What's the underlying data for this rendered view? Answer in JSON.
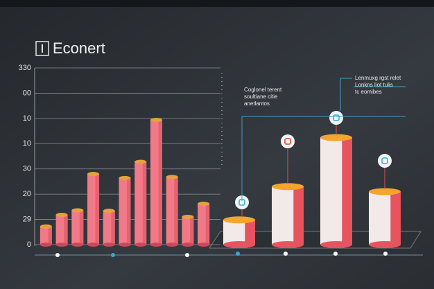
{
  "chart_data": [
    {
      "type": "cylinder-bar",
      "title": "Econert",
      "categories": [
        null,
        null,
        null,
        null,
        null,
        null,
        null,
        null,
        null,
        null,
        null
      ],
      "values": [
        36,
        59,
        68,
        140,
        67,
        132,
        164,
        247,
        134,
        55,
        81
      ],
      "color": "#f27a88",
      "top_color": "#e8a13a",
      "ylim": [
        0,
        350
      ],
      "yticks": [
        0,
        {
          "value": 50,
          "label": "29"
        },
        {
          "value": 100,
          "label": "20"
        },
        {
          "value": 150,
          "label": "30"
        },
        {
          "value": 200,
          "label": "10"
        },
        {
          "value": 250,
          "label": "10"
        },
        {
          "value": 300,
          "label": "00"
        },
        {
          "value": 350,
          "label": "330"
        }
      ],
      "grid": true
    },
    {
      "type": "cylinder-bar",
      "categories": [
        null,
        null,
        null,
        null
      ],
      "values": [
        49,
        115,
        212,
        105
      ],
      "color": "#f3e9e9",
      "side_color": "#e5545f",
      "top_color": "#f3a52e",
      "ylim": [
        0,
        350
      ],
      "annotations": [
        [
          "Coglonel terent",
          "soultiane citie",
          "anetlantos"
        ],
        [
          "Lenmuxg rgst relet",
          "Lonkns liot tulis",
          "tc eomibes"
        ]
      ]
    }
  ]
}
